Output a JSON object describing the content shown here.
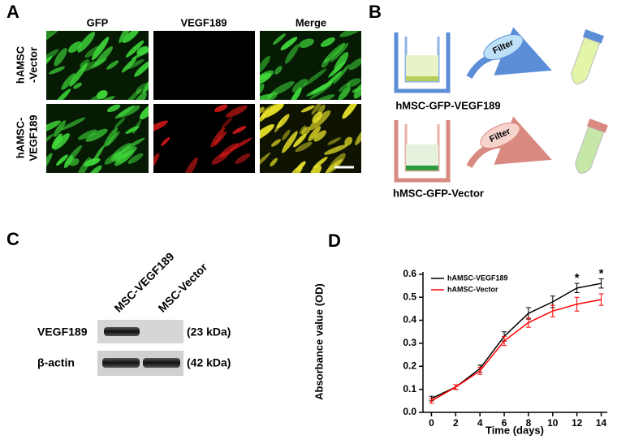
{
  "panel_a": {
    "label": "A",
    "columns": [
      "GFP",
      "VEGF189",
      "Merge"
    ],
    "rows": [
      [
        "hAMSC",
        "-Vector"
      ],
      [
        "hAMSC-",
        "VEGF189"
      ]
    ]
  },
  "panel_b": {
    "label": "B",
    "groups": [
      {
        "name": "hMSC-GFP-VEGF189",
        "filter": "Filter"
      },
      {
        "name": "hMSC-GFP-Vector",
        "filter": "Filter"
      }
    ]
  },
  "panel_c": {
    "label": "C",
    "lanes": [
      "MSC-VEGF189",
      "MSC-Vector"
    ],
    "bands": [
      {
        "name": "VEGF189",
        "size": "(23 kDa)"
      },
      {
        "name": "β-actin",
        "size": "(42 kDa)"
      }
    ]
  },
  "panel_d_label": "D",
  "chart_data": {
    "type": "line",
    "xlabel": "Time (days)",
    "ylabel": "Absorbance value (OD)",
    "x": [
      0,
      2,
      4,
      6,
      8,
      10,
      12,
      14
    ],
    "series": [
      {
        "name": "hAMSC-VEGF189",
        "color": "#000000",
        "values": [
          0.06,
          0.11,
          0.19,
          0.33,
          0.43,
          0.48,
          0.54,
          0.56
        ],
        "errors": [
          0.01,
          0.01,
          0.015,
          0.02,
          0.025,
          0.025,
          0.02,
          0.02
        ]
      },
      {
        "name": "hAMSC-Vector",
        "color": "#ff0000",
        "values": [
          0.05,
          0.11,
          0.18,
          0.31,
          0.39,
          0.44,
          0.47,
          0.49
        ],
        "errors": [
          0.01,
          0.01,
          0.015,
          0.02,
          0.02,
          0.025,
          0.03,
          0.025
        ]
      }
    ],
    "xlim": [
      -0.7,
      14.5
    ],
    "ylim": [
      0,
      0.61
    ],
    "xticks": [
      0,
      2,
      4,
      6,
      8,
      10,
      12,
      14
    ],
    "yticks": [
      {
        "value": 0,
        "label": "0.0"
      },
      0.1,
      0.2,
      0.3,
      0.4,
      0.5,
      0.6
    ],
    "annotations": [
      {
        "x": 12,
        "text": "*"
      },
      {
        "x": 14,
        "text": "*"
      }
    ],
    "legend": "upper left"
  }
}
